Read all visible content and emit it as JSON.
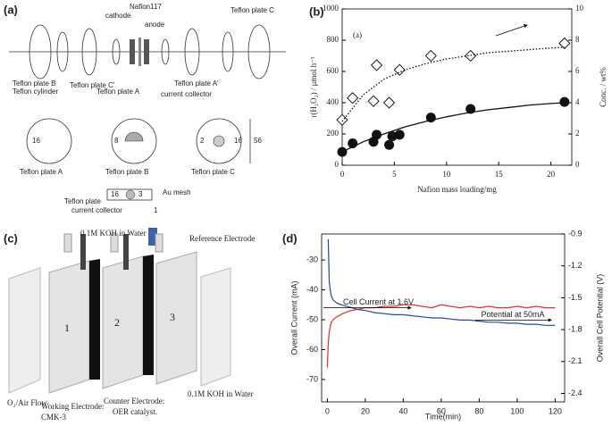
{
  "panels": {
    "a": {
      "panel_label": "(a)",
      "labels": [
        "Nafion117",
        "cathode",
        "anode",
        "Teflon plate C",
        "Teflon plate B",
        "Teflon cylinder",
        "Teflon plate C'",
        "Teflon plate A",
        "Teflon plate A'",
        "current collector"
      ],
      "dims": [
        "16",
        "8",
        "2",
        "16",
        "56"
      ],
      "plates": [
        "Teflon plate A",
        "Teflon plate B",
        "Teflon plate C"
      ],
      "detail": [
        "16",
        "3",
        "Teflon plate",
        "current collector",
        "Au mesh",
        "1"
      ]
    },
    "c": {
      "panel_label": "(c)",
      "labels": [
        "0.1M KOH in Water",
        "Reference Electrode",
        "1",
        "2",
        "3",
        "O₂/Air Flow",
        "Working Electrode:",
        "CMK-3",
        "Counter Electrode:",
        "OER catalyst.",
        "0.1M KOH in Water"
      ]
    }
  },
  "chart_data": [
    {
      "type": "scatter",
      "panel_label": "(b)",
      "annotation": "(a)",
      "x_label": "Nafion mass loading/mg",
      "y_label": "r(H₂O₂) / μmol h⁻¹",
      "y2_label": "Conc. / wt%",
      "xlim": [
        0,
        22
      ],
      "xticks": [
        0,
        5,
        10,
        15,
        20
      ],
      "ylim": [
        0,
        1000
      ],
      "yticks": [
        0,
        200,
        400,
        600,
        800,
        1000
      ],
      "y2lim": [
        0,
        10
      ],
      "y2ticks": [
        0,
        2,
        4,
        6,
        8,
        10
      ],
      "series": [
        {
          "marker": "circle",
          "color": "#111111",
          "x": [
            0,
            1,
            3,
            3.3,
            4.5,
            4.8,
            5.5,
            8.5,
            12.3,
            21.3
          ],
          "values": [
            85,
            140,
            150,
            195,
            130,
            185,
            195,
            305,
            360,
            405
          ]
        },
        {
          "marker": "diamond",
          "color": "#111111",
          "axis": "y2",
          "x": [
            0,
            1,
            3,
            3.3,
            4.5,
            5.5,
            8.5,
            12.3,
            21.3
          ],
          "values": [
            2.9,
            4.3,
            4.1,
            6.4,
            4.0,
            6.1,
            7.0,
            7.0,
            7.8
          ]
        },
        {
          "marker": "line",
          "dash": "none",
          "color": "#111111",
          "x": [
            0,
            2,
            4,
            6,
            8,
            10,
            12,
            14,
            16,
            18,
            20,
            21.3
          ],
          "values": [
            85,
            150,
            200,
            245,
            280,
            310,
            335,
            355,
            370,
            385,
            395,
            400
          ]
        },
        {
          "marker": "line",
          "dash": "1.5 2",
          "color": "#111111",
          "axis": "y2",
          "x": [
            0,
            2,
            4,
            6,
            8,
            10,
            12,
            14,
            16,
            18,
            20,
            21.3
          ],
          "values": [
            2.8,
            4.5,
            5.5,
            6.1,
            6.5,
            6.8,
            7.0,
            7.2,
            7.3,
            7.4,
            7.5,
            7.55
          ]
        }
      ]
    },
    {
      "type": "line",
      "panel_label": "(d)",
      "x_label": "Time(min)",
      "y_label": "Overall Current (mA)",
      "y2_label": "Overall Cell Potential (V)",
      "annotations": [
        "Cell Current at 1.6V",
        "Potential at 50mA"
      ],
      "xlim": [
        -3,
        125
      ],
      "xticks": [
        0,
        20,
        40,
        60,
        80,
        100,
        120
      ],
      "ylim": [
        -77.5,
        -21.3
      ],
      "yticks": [
        -30,
        -40,
        -50,
        -60,
        -70
      ],
      "y2lim": [
        -2.48,
        -0.9
      ],
      "y2ticks": [
        -0.9,
        -1.2,
        -1.5,
        -1.8,
        -2.1,
        -2.4
      ],
      "x": [
        0,
        0.5,
        1,
        2,
        3,
        5,
        8,
        12,
        16,
        20,
        25,
        30,
        35,
        40,
        45,
        50,
        55,
        60,
        65,
        70,
        75,
        80,
        85,
        90,
        95,
        100,
        105,
        110,
        115,
        120
      ],
      "series": [
        {
          "color": "#e0302a",
          "values": [
            -66,
            -58,
            -54,
            -51,
            -50,
            -49,
            -48,
            -47,
            -46.5,
            -46,
            -46,
            -45.5,
            -45.5,
            -45,
            -45,
            -45.5,
            -46,
            -45,
            -45.5,
            -46,
            -45.5,
            -46,
            -45.5,
            -46,
            -46,
            -45.5,
            -46,
            -45.5,
            -46,
            -46
          ]
        },
        {
          "color": "#1f4e9c",
          "axis": "y2",
          "values": [
            null,
            -0.95,
            -1.35,
            -1.48,
            -1.52,
            -1.55,
            -1.57,
            -1.59,
            -1.61,
            -1.62,
            -1.64,
            -1.65,
            -1.66,
            -1.66,
            -1.67,
            -1.68,
            -1.69,
            -1.69,
            -1.7,
            -1.71,
            -1.71,
            -1.72,
            -1.73,
            -1.73,
            -1.74,
            -1.74,
            -1.75,
            -1.75,
            -1.76,
            -1.76
          ]
        }
      ]
    }
  ]
}
